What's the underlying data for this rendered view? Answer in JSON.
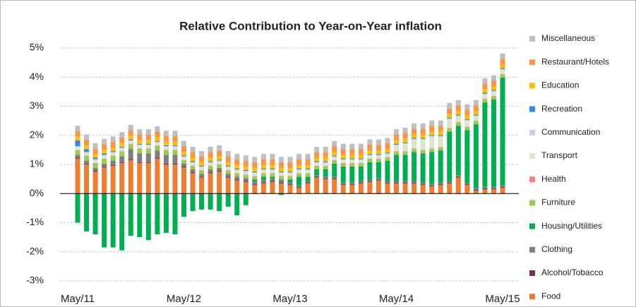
{
  "chart_data": {
    "type": "bar",
    "stacked": true,
    "title": "Relative Contribution to Year-on-Year inflation",
    "categories": [
      "May/11",
      null,
      null,
      null,
      null,
      null,
      null,
      null,
      null,
      null,
      null,
      null,
      "May/12",
      null,
      null,
      null,
      null,
      null,
      null,
      null,
      null,
      null,
      null,
      null,
      "May/13",
      null,
      null,
      null,
      null,
      null,
      null,
      null,
      null,
      null,
      null,
      null,
      "May/14",
      null,
      null,
      null,
      null,
      null,
      null,
      null,
      null,
      null,
      null,
      null,
      "May/15"
    ],
    "ylim": [
      -3,
      5
    ],
    "yticks": [
      {
        "value": -3,
        "label": "-3%"
      },
      {
        "value": -2,
        "label": "-2%"
      },
      {
        "value": -1,
        "label": "-1%"
      },
      {
        "value": 0,
        "label": "0%"
      },
      {
        "value": 1,
        "label": "1%"
      },
      {
        "value": 2,
        "label": "2%"
      },
      {
        "value": 3,
        "label": "3%"
      },
      {
        "value": 4,
        "label": "4%"
      },
      {
        "value": 5,
        "label": "5%"
      }
    ],
    "grid": true,
    "legend": "right",
    "series": [
      {
        "name": "Food",
        "color": "#ed7d31",
        "values": [
          1.2,
          1.0,
          0.75,
          0.9,
          0.95,
          1.05,
          1.15,
          1.05,
          1.05,
          1.2,
          1.0,
          1.0,
          0.9,
          0.7,
          0.55,
          0.7,
          0.75,
          0.55,
          0.45,
          0.4,
          0.3,
          0.35,
          0.4,
          0.35,
          0.3,
          0.2,
          0.35,
          0.55,
          0.5,
          0.5,
          0.3,
          0.3,
          0.35,
          0.4,
          0.45,
          0.35,
          0.35,
          0.35,
          0.35,
          0.3,
          0.25,
          0.3,
          0.35,
          0.55,
          0.3,
          0.1,
          0.15,
          0.15,
          0.2
        ]
      },
      {
        "name": "Alcohol/Tobacco",
        "color": "#7b2c5a",
        "values": [
          0.03,
          0.03,
          0.03,
          0.03,
          0.03,
          0.03,
          0.03,
          0.03,
          0.03,
          0.03,
          0.03,
          0.03,
          0.03,
          0.03,
          0.03,
          0.03,
          0.03,
          0.03,
          0.03,
          0.03,
          0.03,
          0.03,
          0.03,
          0.03,
          0.03,
          0.03,
          0.03,
          0.03,
          0.03,
          0.03,
          0.03,
          0.03,
          0.03,
          0.03,
          0.03,
          0.03,
          0.03,
          0.03,
          0.03,
          0.03,
          0.03,
          0.03,
          0.03,
          0.03,
          0.03,
          0.03,
          0.03,
          0.03,
          0.03
        ]
      },
      {
        "name": "Clothing",
        "color": "#7f7f7f",
        "values": [
          0.1,
          0.1,
          0.1,
          0.1,
          0.15,
          0.2,
          0.35,
          0.3,
          0.3,
          0.25,
          0.3,
          0.3,
          0.1,
          0.1,
          0.1,
          0.1,
          0.1,
          0.1,
          0.1,
          0.1,
          0.1,
          0.1,
          0.1,
          0.1,
          0.05,
          0.05,
          0.05,
          0.05,
          0.05,
          0.05,
          0.05,
          0.05,
          0.05,
          0.05,
          0.05,
          0.05,
          0.05,
          0.05,
          0.05,
          0.05,
          0.05,
          0.05,
          0.05,
          0.05,
          0.05,
          0.05,
          0.05,
          0.05,
          0.05
        ]
      },
      {
        "name": "Housing/Utilities",
        "color": "#00b050",
        "values": [
          -1.0,
          -1.3,
          -1.4,
          -1.85,
          -1.85,
          -1.95,
          -1.45,
          -1.5,
          -1.6,
          -1.4,
          -1.35,
          -1.4,
          -0.8,
          -0.6,
          -0.55,
          -0.55,
          -0.6,
          -0.45,
          -0.75,
          -0.4,
          0.05,
          0.1,
          0.05,
          -0.05,
          0.1,
          0.3,
          0.15,
          0.2,
          0.25,
          0.45,
          0.55,
          0.55,
          0.5,
          0.6,
          0.55,
          0.7,
          0.9,
          0.9,
          1.0,
          1.0,
          1.1,
          1.1,
          1.7,
          1.7,
          1.8,
          2.2,
          2.9,
          3.0,
          3.7
        ]
      },
      {
        "name": "Furniture",
        "color": "#92d050",
        "values": [
          0.15,
          0.15,
          0.15,
          0.15,
          0.15,
          0.15,
          0.15,
          0.15,
          0.15,
          0.15,
          0.15,
          0.15,
          0.1,
          0.1,
          0.1,
          0.1,
          0.1,
          0.1,
          0.1,
          0.1,
          0.1,
          0.1,
          0.1,
          0.1,
          0.1,
          0.1,
          0.1,
          0.1,
          0.1,
          0.1,
          0.1,
          0.1,
          0.1,
          0.1,
          0.1,
          0.1,
          0.1,
          0.1,
          0.1,
          0.1,
          0.1,
          0.1,
          0.1,
          0.1,
          0.1,
          0.1,
          0.1,
          0.1,
          0.1
        ]
      },
      {
        "name": "Health",
        "color": "#ff7c80",
        "values": [
          0.02,
          0.02,
          0.02,
          0.02,
          0.02,
          0.02,
          0.02,
          0.02,
          0.02,
          0.02,
          0.02,
          0.02,
          0.02,
          0.02,
          0.02,
          0.02,
          0.02,
          0.02,
          0.02,
          0.02,
          0.02,
          0.02,
          0.02,
          0.02,
          0.02,
          0.02,
          0.02,
          0.02,
          0.02,
          0.02,
          0.02,
          0.02,
          0.02,
          0.02,
          0.02,
          0.02,
          0.02,
          0.02,
          0.02,
          0.02,
          0.02,
          0.02,
          0.02,
          0.02,
          0.02,
          0.02,
          0.02,
          0.02,
          0.02
        ]
      },
      {
        "name": "Transport",
        "color": "#dbe7c9",
        "values": [
          0.1,
          0.1,
          0.1,
          0.1,
          0.1,
          0.1,
          0.1,
          0.1,
          0.1,
          0.1,
          0.1,
          0.1,
          0.1,
          0.1,
          0.1,
          0.1,
          0.1,
          0.1,
          0.1,
          0.1,
          0.1,
          0.1,
          0.1,
          0.1,
          0.1,
          0.1,
          0.1,
          0.1,
          0.1,
          0.1,
          0.1,
          0.1,
          0.1,
          0.1,
          0.1,
          0.1,
          0.2,
          0.25,
          0.3,
          0.35,
          0.4,
          0.35,
          0.3,
          0.2,
          0.2,
          0.15,
          0.15,
          0.15,
          0.15
        ]
      },
      {
        "name": "Communication",
        "color": "#c5ccf0",
        "values": [
          0.03,
          0.03,
          0.03,
          0.03,
          0.03,
          0.03,
          0.03,
          0.03,
          0.03,
          0.03,
          0.03,
          0.03,
          0.03,
          0.03,
          0.03,
          0.03,
          0.03,
          0.03,
          0.03,
          0.03,
          0.03,
          0.03,
          0.03,
          0.03,
          0.03,
          0.03,
          0.03,
          0.03,
          0.03,
          0.03,
          0.03,
          0.03,
          0.03,
          0.03,
          0.03,
          0.03,
          0.03,
          0.03,
          0.03,
          0.03,
          0.03,
          0.03,
          0.03,
          0.03,
          0.03,
          0.03,
          0.03,
          0.03,
          0.03
        ]
      },
      {
        "name": "Recreation",
        "color": "#2e8be8",
        "values": [
          0.2,
          0.1,
          0.05,
          0.05,
          0.03,
          0.03,
          0.03,
          0.03,
          0.03,
          0.03,
          0.03,
          0.03,
          0.03,
          0.03,
          0.03,
          0.03,
          0.03,
          0.03,
          0.03,
          0.03,
          0.03,
          0.03,
          0.03,
          0.03,
          0.03,
          0.03,
          0.03,
          0.03,
          0.03,
          0.03,
          0.03,
          0.03,
          0.03,
          0.03,
          0.03,
          0.03,
          0.03,
          0.03,
          0.03,
          0.03,
          0.03,
          0.03,
          0.03,
          0.03,
          0.03,
          0.03,
          0.03,
          0.03,
          0.03
        ]
      },
      {
        "name": "Education",
        "color": "#ffc000",
        "values": [
          0.12,
          0.12,
          0.12,
          0.12,
          0.12,
          0.12,
          0.12,
          0.12,
          0.12,
          0.12,
          0.12,
          0.12,
          0.12,
          0.12,
          0.12,
          0.12,
          0.12,
          0.12,
          0.12,
          0.12,
          0.12,
          0.12,
          0.12,
          0.12,
          0.12,
          0.12,
          0.12,
          0.12,
          0.12,
          0.12,
          0.12,
          0.12,
          0.12,
          0.12,
          0.12,
          0.12,
          0.12,
          0.12,
          0.12,
          0.12,
          0.12,
          0.12,
          0.12,
          0.12,
          0.12,
          0.12,
          0.12,
          0.12,
          0.12
        ]
      },
      {
        "name": "Restaurant/Hotels",
        "color": "#f79646",
        "values": [
          0.2,
          0.2,
          0.2,
          0.2,
          0.2,
          0.2,
          0.2,
          0.2,
          0.2,
          0.2,
          0.2,
          0.2,
          0.2,
          0.2,
          0.2,
          0.2,
          0.2,
          0.2,
          0.2,
          0.2,
          0.2,
          0.2,
          0.2,
          0.2,
          0.2,
          0.2,
          0.2,
          0.2,
          0.2,
          0.2,
          0.2,
          0.2,
          0.2,
          0.2,
          0.2,
          0.2,
          0.2,
          0.2,
          0.2,
          0.2,
          0.2,
          0.2,
          0.2,
          0.2,
          0.2,
          0.2,
          0.2,
          0.2,
          0.2
        ]
      },
      {
        "name": "Miscellaneous",
        "color": "#bfbfbf",
        "values": [
          0.18,
          0.18,
          0.18,
          0.18,
          0.18,
          0.18,
          0.18,
          0.18,
          0.18,
          0.18,
          0.18,
          0.18,
          0.18,
          0.18,
          0.18,
          0.18,
          0.18,
          0.18,
          0.18,
          0.18,
          0.18,
          0.18,
          0.18,
          0.18,
          0.18,
          0.18,
          0.18,
          0.18,
          0.18,
          0.18,
          0.18,
          0.18,
          0.18,
          0.18,
          0.18,
          0.18,
          0.18,
          0.18,
          0.18,
          0.18,
          0.18,
          0.18,
          0.18,
          0.18,
          0.18,
          0.18,
          0.18,
          0.18,
          0.18
        ]
      }
    ]
  }
}
